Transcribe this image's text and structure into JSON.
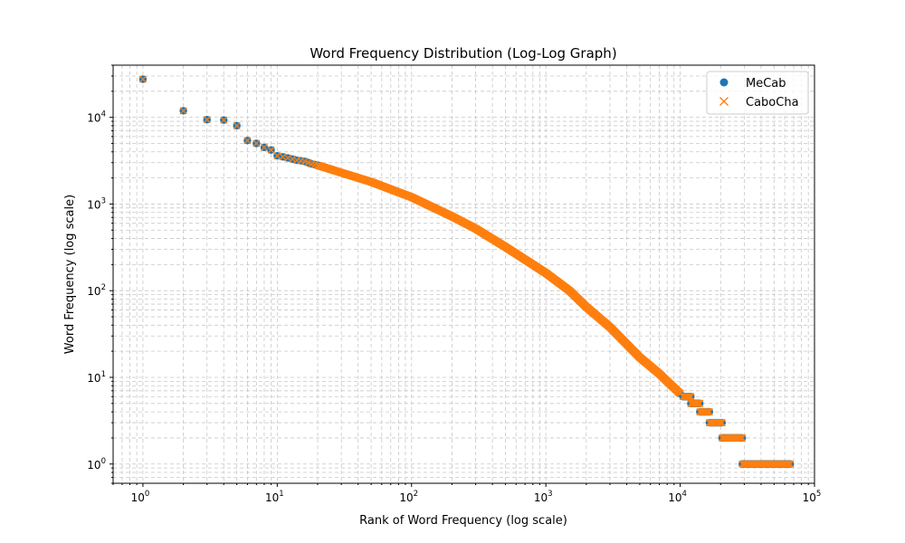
{
  "chart_data": {
    "type": "scatter",
    "title": "Word Frequency Distribution (Log-Log Graph)",
    "xlabel": "Rank of Word Frequency (log scale)",
    "ylabel": "Word Frequency (log scale)",
    "xscale": "log",
    "yscale": "log",
    "xlim": [
      0.6,
      100000
    ],
    "ylim": [
      0.6,
      40000
    ],
    "grid": "on (major and minor, dashed)",
    "legend_position": "top-right",
    "x_ticks": [
      {
        "base": "10",
        "exp": "0"
      },
      {
        "base": "10",
        "exp": "1"
      },
      {
        "base": "10",
        "exp": "2"
      },
      {
        "base": "10",
        "exp": "3"
      },
      {
        "base": "10",
        "exp": "4"
      },
      {
        "base": "10",
        "exp": "5"
      }
    ],
    "y_ticks": [
      {
        "base": "10",
        "exp": "0"
      },
      {
        "base": "10",
        "exp": "1"
      },
      {
        "base": "10",
        "exp": "2"
      },
      {
        "base": "10",
        "exp": "3"
      },
      {
        "base": "10",
        "exp": "4"
      }
    ],
    "series": [
      {
        "name": "MeCab",
        "marker": "circle",
        "color": "#1f77b4"
      },
      {
        "name": "CaboCha",
        "marker": "x",
        "color": "#ff7f0e"
      }
    ],
    "note_same_data": true,
    "head_points": [
      [
        1,
        27500
      ],
      [
        2,
        11900
      ],
      [
        3,
        9400
      ],
      [
        4,
        9300
      ],
      [
        5,
        8000
      ],
      [
        6,
        5400
      ],
      [
        7,
        5000
      ],
      [
        8,
        4500
      ],
      [
        9,
        4200
      ],
      [
        10,
        3600
      ],
      [
        11,
        3500
      ],
      [
        12,
        3400
      ],
      [
        13,
        3300
      ],
      [
        14,
        3200
      ],
      [
        15,
        3150
      ],
      [
        16,
        3100
      ],
      [
        17,
        3000
      ],
      [
        18,
        2900
      ],
      [
        19,
        2850
      ],
      [
        20,
        2800
      ]
    ],
    "curve_points": [
      [
        20,
        2800
      ],
      [
        30,
        2300
      ],
      [
        50,
        1800
      ],
      [
        100,
        1200
      ],
      [
        200,
        720
      ],
      [
        300,
        520
      ],
      [
        500,
        320
      ],
      [
        1000,
        160
      ],
      [
        1500,
        100
      ],
      [
        2000,
        65
      ],
      [
        3000,
        38
      ],
      [
        5000,
        17
      ],
      [
        7000,
        11
      ],
      [
        8000,
        9
      ],
      [
        10000,
        6.5
      ]
    ],
    "plateaus": [
      {
        "y": 6,
        "from": 10500,
        "to": 12000
      },
      {
        "y": 5,
        "from": 12000,
        "to": 14000
      },
      {
        "y": 4,
        "from": 14000,
        "to": 16500
      },
      {
        "y": 3,
        "from": 16500,
        "to": 20500
      },
      {
        "y": 2,
        "from": 20500,
        "to": 29000
      },
      {
        "y": 1,
        "from": 29000,
        "to": 66000
      }
    ]
  }
}
